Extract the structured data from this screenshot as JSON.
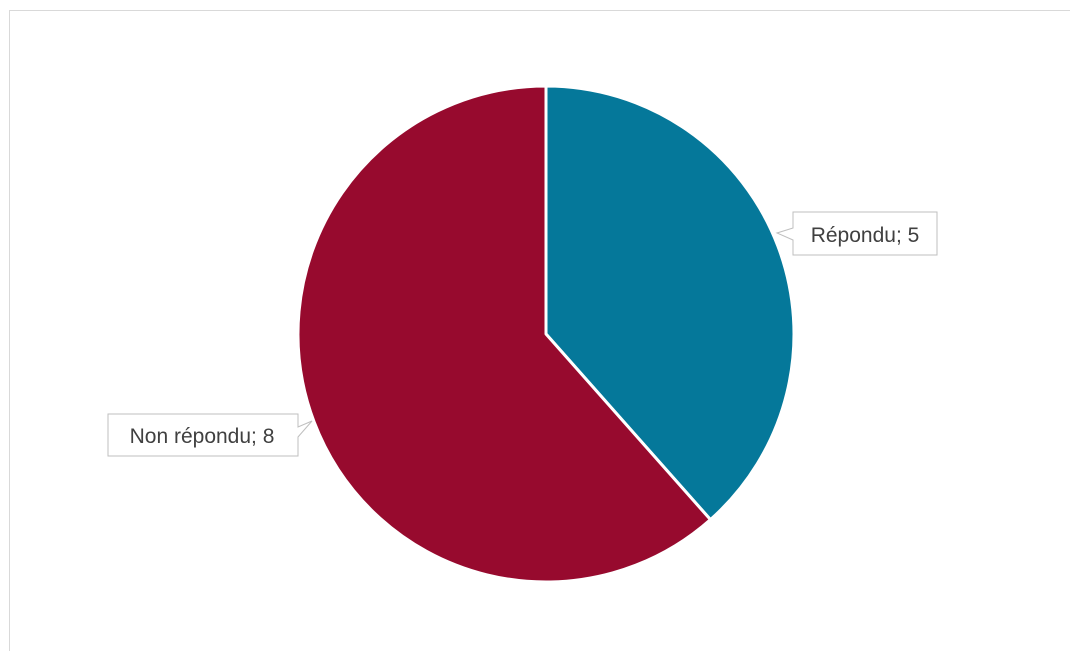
{
  "chart_data": {
    "type": "pie",
    "title": "",
    "slices": [
      {
        "label": "Répondu",
        "value": 5,
        "color": "#05789A",
        "callout": "Répondu; 5"
      },
      {
        "label": "Non répondu",
        "value": 8,
        "color": "#970A2E",
        "callout": "Non répondu; 8"
      }
    ],
    "start_angle_deg": 0,
    "direction": "clockwise",
    "legend": "none",
    "data_labels": "callout"
  }
}
